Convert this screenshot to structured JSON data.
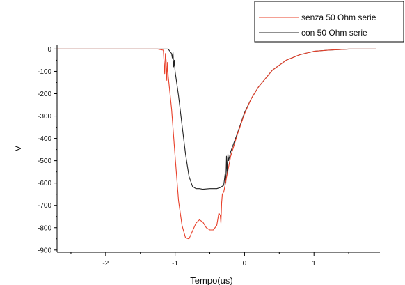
{
  "chart_data": {
    "type": "line",
    "xlabel": "Tempo(us)",
    "ylabel": "V",
    "xlim": [
      -2.7,
      1.95
    ],
    "ylim": [
      -910,
      20
    ],
    "x_ticks": [
      -2,
      -1,
      0,
      1
    ],
    "x_tick_labels": [
      "-2",
      "-1",
      "0",
      "1"
    ],
    "y_ticks": [
      0,
      -100,
      -200,
      -300,
      -400,
      -500,
      -600,
      -700,
      -800,
      -900
    ],
    "y_tick_labels": [
      "0",
      "-100",
      "-200",
      "-300",
      "-400",
      "-500",
      "-600",
      "-700",
      "-800",
      "-900"
    ],
    "grid": false,
    "legend_position": "top-right",
    "series": [
      {
        "name": "senza 50 Ohm serie",
        "color": "#e8402a",
        "x": [
          -2.7,
          -1.25,
          -1.17,
          -1.15,
          -1.14,
          -1.13,
          -1.12,
          -1.11,
          -1.1,
          -1.05,
          -1.0,
          -0.95,
          -0.9,
          -0.85,
          -0.8,
          -0.75,
          -0.7,
          -0.65,
          -0.6,
          -0.55,
          -0.5,
          -0.45,
          -0.4,
          -0.37,
          -0.35,
          -0.34,
          -0.33,
          -0.32,
          -0.3,
          -0.28,
          -0.26,
          -0.24,
          -0.2,
          -0.1,
          0.0,
          0.1,
          0.2,
          0.4,
          0.6,
          0.8,
          1.0,
          1.2,
          1.5,
          1.9
        ],
        "y": [
          0,
          0,
          -5,
          -110,
          -20,
          -50,
          -140,
          -60,
          -120,
          -270,
          -480,
          -680,
          -790,
          -845,
          -850,
          -815,
          -780,
          -765,
          -775,
          -800,
          -810,
          -810,
          -790,
          -735,
          -745,
          -780,
          -690,
          -650,
          -640,
          -610,
          -575,
          -545,
          -480,
          -380,
          -290,
          -220,
          -170,
          -95,
          -50,
          -25,
          -10,
          -5,
          0,
          0
        ]
      },
      {
        "name": "con 50 Ohm serie",
        "color": "#222222",
        "x": [
          -2.7,
          -1.1,
          -1.05,
          -1.04,
          -1.03,
          -1.02,
          -1.01,
          -1.0,
          -0.95,
          -0.9,
          -0.85,
          -0.8,
          -0.75,
          -0.7,
          -0.65,
          -0.6,
          -0.5,
          -0.4,
          -0.35,
          -0.3,
          -0.28,
          -0.27,
          -0.26,
          -0.25,
          -0.24,
          -0.23,
          -0.2,
          -0.1,
          0.0,
          0.1,
          0.2,
          0.4,
          0.6,
          0.8,
          1.0,
          1.2,
          1.5,
          1.9
        ],
        "y": [
          0,
          0,
          -20,
          -40,
          -15,
          -80,
          -50,
          -100,
          -210,
          -340,
          -470,
          -570,
          -615,
          -625,
          -625,
          -628,
          -625,
          -625,
          -620,
          -610,
          -560,
          -600,
          -480,
          -560,
          -470,
          -500,
          -460,
          -375,
          -285,
          -220,
          -170,
          -95,
          -50,
          -25,
          -10,
          -5,
          0,
          0
        ]
      }
    ]
  }
}
